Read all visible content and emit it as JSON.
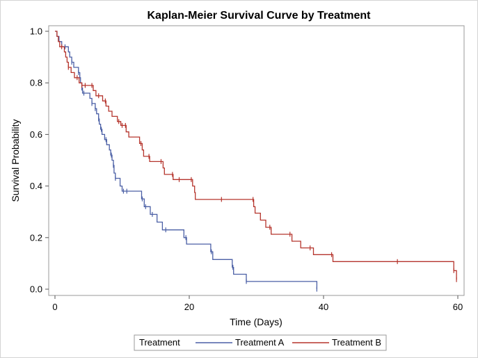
{
  "chart_data": {
    "type": "line",
    "title": "Kaplan-Meier Survival Curve by Treatment",
    "xlabel": "Time (Days)",
    "ylabel": "Survival Probability",
    "xlim": [
      0,
      60
    ],
    "ylim": [
      0,
      1
    ],
    "xticks": [
      0,
      20,
      40,
      60
    ],
    "yticks": [
      0.0,
      0.2,
      0.4,
      0.6,
      0.8,
      1.0
    ],
    "legend": {
      "title": "Treatment",
      "placement": "bottom"
    },
    "series": [
      {
        "name": "Treatment A",
        "color": "#4a5fa5",
        "step": [
          [
            0,
            1.0
          ],
          [
            0.3,
            0.98
          ],
          [
            0.6,
            0.96
          ],
          [
            1.0,
            0.94
          ],
          [
            2.0,
            0.92
          ],
          [
            2.2,
            0.9
          ],
          [
            2.5,
            0.88
          ],
          [
            2.8,
            0.86
          ],
          [
            3.5,
            0.84
          ],
          [
            3.7,
            0.82
          ],
          [
            3.8,
            0.8
          ],
          [
            4.0,
            0.78
          ],
          [
            4.1,
            0.76
          ],
          [
            5.2,
            0.74
          ],
          [
            5.5,
            0.72
          ],
          [
            6.0,
            0.7
          ],
          [
            6.2,
            0.68
          ],
          [
            6.5,
            0.66
          ],
          [
            6.6,
            0.64
          ],
          [
            6.8,
            0.62
          ],
          [
            7.0,
            0.6
          ],
          [
            7.4,
            0.58
          ],
          [
            7.7,
            0.56
          ],
          [
            8.1,
            0.54
          ],
          [
            8.3,
            0.52
          ],
          [
            8.5,
            0.5
          ],
          [
            8.7,
            0.48
          ],
          [
            8.8,
            0.45
          ],
          [
            9.0,
            0.43
          ],
          [
            9.7,
            0.4
          ],
          [
            10.0,
            0.38
          ],
          [
            12.9,
            0.35
          ],
          [
            13.3,
            0.32
          ],
          [
            14.2,
            0.29
          ],
          [
            15.2,
            0.26
          ],
          [
            16.0,
            0.23
          ],
          [
            19.2,
            0.2
          ],
          [
            19.6,
            0.175
          ],
          [
            23.2,
            0.145
          ],
          [
            23.5,
            0.115
          ],
          [
            26.4,
            0.085
          ],
          [
            26.6,
            0.058
          ],
          [
            28.5,
            0.03
          ],
          [
            39.0,
            0.0
          ]
        ],
        "censor_x": [
          1.5,
          2.5,
          3.5,
          4.0,
          4.3,
          5.5,
          6.0,
          6.5,
          6.9,
          7.6,
          8.4,
          8.7,
          9.0,
          10.2,
          10.7,
          13.0,
          13.5,
          14.5,
          16.5,
          19.5,
          23.3,
          26.5,
          28.5,
          39.0
        ]
      },
      {
        "name": "Treatment B",
        "color": "#b5342c",
        "step": [
          [
            0,
            1.0
          ],
          [
            0.3,
            0.98
          ],
          [
            0.5,
            0.96
          ],
          [
            0.7,
            0.94
          ],
          [
            1.4,
            0.92
          ],
          [
            1.6,
            0.9
          ],
          [
            1.8,
            0.88
          ],
          [
            2.0,
            0.86
          ],
          [
            2.4,
            0.84
          ],
          [
            2.9,
            0.82
          ],
          [
            3.6,
            0.8
          ],
          [
            4.0,
            0.79
          ],
          [
            5.7,
            0.77
          ],
          [
            6.1,
            0.75
          ],
          [
            7.1,
            0.73
          ],
          [
            7.6,
            0.71
          ],
          [
            8.0,
            0.69
          ],
          [
            8.5,
            0.67
          ],
          [
            9.3,
            0.65
          ],
          [
            9.8,
            0.635
          ],
          [
            10.6,
            0.61
          ],
          [
            11.0,
            0.59
          ],
          [
            12.6,
            0.565
          ],
          [
            13.0,
            0.54
          ],
          [
            13.2,
            0.515
          ],
          [
            14.1,
            0.495
          ],
          [
            16.1,
            0.47
          ],
          [
            16.3,
            0.445
          ],
          [
            17.6,
            0.425
          ],
          [
            20.5,
            0.4
          ],
          [
            20.8,
            0.375
          ],
          [
            20.9,
            0.348
          ],
          [
            29.6,
            0.32
          ],
          [
            29.8,
            0.295
          ],
          [
            30.6,
            0.268
          ],
          [
            31.4,
            0.24
          ],
          [
            32.2,
            0.213
          ],
          [
            35.3,
            0.186
          ],
          [
            36.6,
            0.16
          ],
          [
            38.5,
            0.134
          ],
          [
            41.4,
            0.107
          ],
          [
            59.4,
            0.072
          ],
          [
            59.8,
            0.037
          ]
        ],
        "censor_x": [
          1.0,
          2.0,
          3.3,
          4.0,
          4.5,
          5.5,
          6.5,
          7.5,
          9.5,
          10.0,
          10.5,
          12.8,
          14.0,
          15.8,
          17.5,
          18.5,
          20.3,
          24.8,
          29.5,
          32.0,
          35.0,
          38.0,
          41.2,
          51.0,
          59.4,
          59.8
        ]
      }
    ]
  }
}
